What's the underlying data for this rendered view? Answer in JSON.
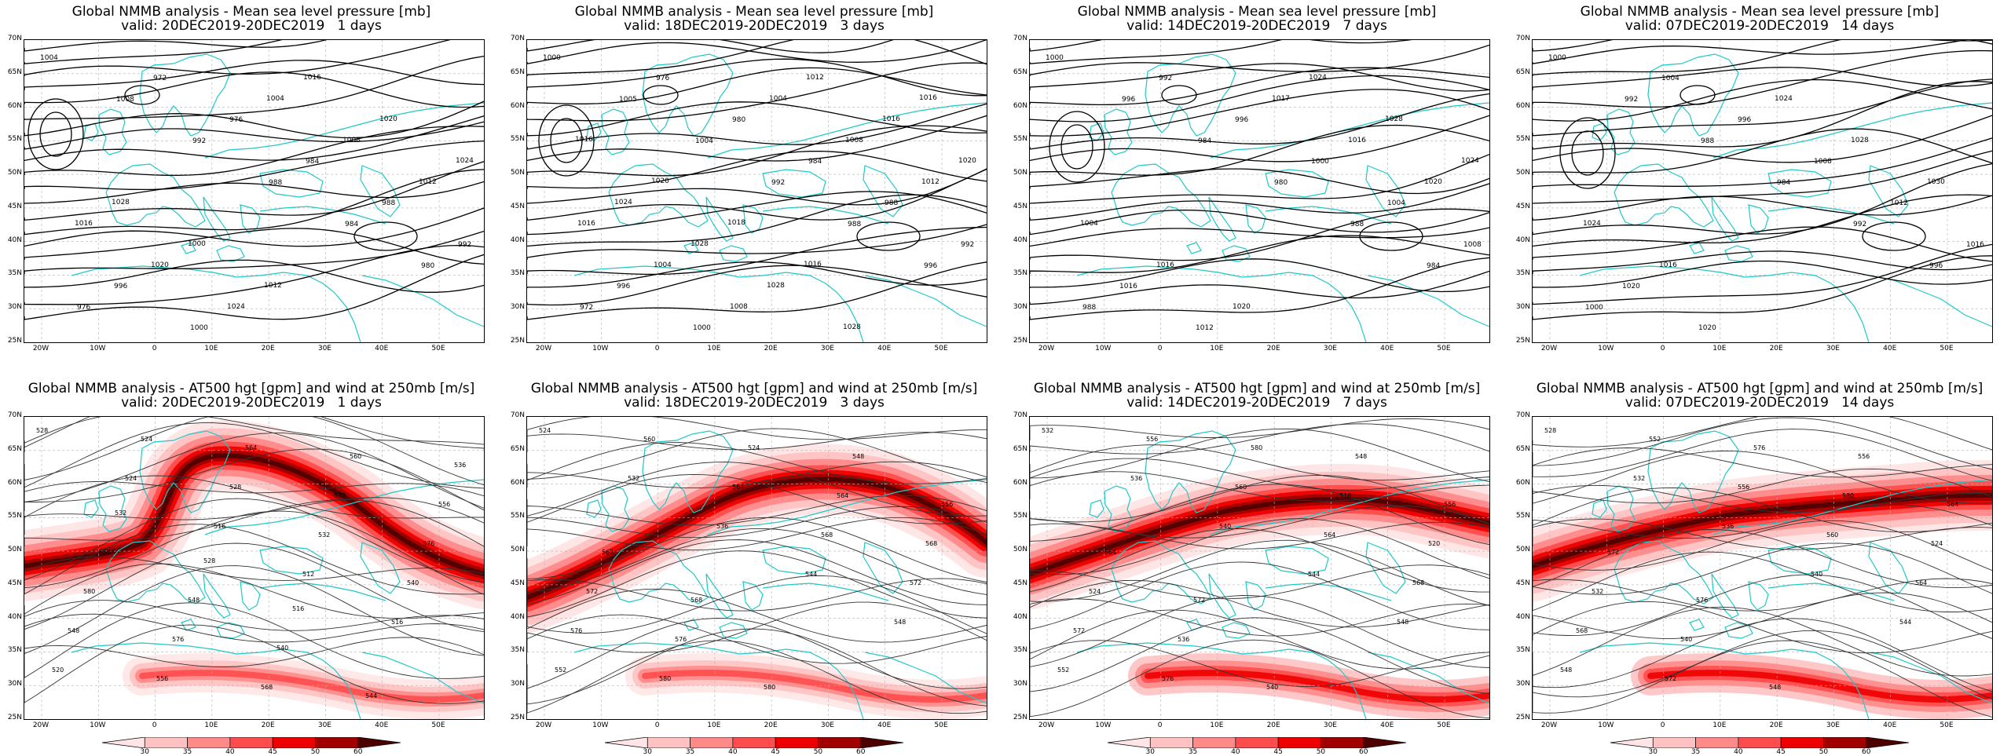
{
  "mslp_title": "Global NMMB analysis - Mean sea level pressure [mb]",
  "z500_title": "Global NMMB analysis - AT500 hgt [gpm] and wind at 250mb [m/s]",
  "columns": [
    {
      "valid": "valid: 20DEC2019-20DEC2019   1 days"
    },
    {
      "valid": "valid: 18DEC2019-20DEC2019   3 days"
    },
    {
      "valid": "valid: 14DEC2019-20DEC2019   7 days"
    },
    {
      "valid": "valid: 07DEC2019-20DEC2019   14 days"
    }
  ],
  "lat_labels": [
    "70N",
    "65N",
    "60N",
    "55N",
    "50N",
    "45N",
    "40N",
    "35N",
    "30N",
    "25N"
  ],
  "lon_labels": [
    "20W",
    "10W",
    "0",
    "10E",
    "20E",
    "30E",
    "40E",
    "50E"
  ],
  "colorbar_ticks": [
    "30",
    "35",
    "40",
    "45",
    "50",
    "60"
  ],
  "colorbar_colors": [
    "#ffe5e5",
    "#ffc2c2",
    "#ff8a8a",
    "#ff4d4d",
    "#ee0000",
    "#a00000",
    "#4d0000"
  ],
  "colors": {
    "coast": "#20c8c8",
    "contour": "#000000",
    "grid": "#b0b0b0"
  },
  "mslp_labels": [
    [
      "1004",
      "1008",
      "992",
      "988",
      "984",
      "980",
      "976",
      "972",
      "976",
      "984",
      "988",
      "992",
      "996",
      "1000",
      "1004",
      "1008",
      "1012",
      "1016",
      "1020",
      "1024",
      "1016",
      "1020",
      "1024",
      "1028",
      "1000",
      "1012"
    ],
    [
      "1000",
      "1005",
      "1004",
      "992",
      "988",
      "996",
      "972",
      "976",
      "980",
      "984",
      "988",
      "992",
      "996",
      "1000",
      "1004",
      "1008",
      "1012",
      "1016",
      "1004",
      "1008",
      "1012",
      "1016",
      "1020",
      "1024",
      "1028",
      "1028",
      "1028",
      "1016",
      "1016",
      "1020",
      "1018",
      "1016"
    ],
    [
      "1000",
      "996",
      "984",
      "980",
      "988",
      "984",
      "988",
      "992",
      "996",
      "1000",
      "1004",
      "1008",
      "1016",
      "1012",
      "1017",
      "1016",
      "1020",
      "1004",
      "1016",
      "1020",
      "1024",
      "1028",
      "1024"
    ],
    [
      "1000",
      "992",
      "988",
      "984",
      "992",
      "996",
      "1000",
      "1004",
      "996",
      "1008",
      "1012",
      "1016",
      "1020",
      "1020",
      "1024",
      "1028",
      "1030",
      "1024",
      "1016"
    ]
  ],
  "z500_labels": [
    [
      "528",
      "524",
      "516",
      "512",
      "516",
      "520",
      "524",
      "528",
      "532",
      "540",
      "548",
      "556",
      "564",
      "572",
      "576",
      "580",
      "576",
      "568",
      "560",
      "556",
      "552",
      "548",
      "540",
      "544",
      "536",
      "532",
      "528",
      "516"
    ],
    [
      "524",
      "532",
      "536",
      "544",
      "548",
      "552",
      "560",
      "564",
      "568",
      "572",
      "576",
      "580",
      "524",
      "564",
      "568",
      "572",
      "576",
      "580",
      "548",
      "556",
      "562",
      "568"
    ],
    [
      "532",
      "536",
      "540",
      "544",
      "548",
      "552",
      "556",
      "560",
      "564",
      "568",
      "572",
      "576",
      "580",
      "516",
      "520",
      "524",
      "536",
      "540",
      "548",
      "556",
      "564",
      "572"
    ],
    [
      "528",
      "532",
      "536",
      "540",
      "544",
      "548",
      "552",
      "556",
      "560",
      "564",
      "568",
      "572",
      "576",
      "580",
      "524",
      "532",
      "540",
      "548",
      "556",
      "564",
      "572",
      "576"
    ]
  ]
}
